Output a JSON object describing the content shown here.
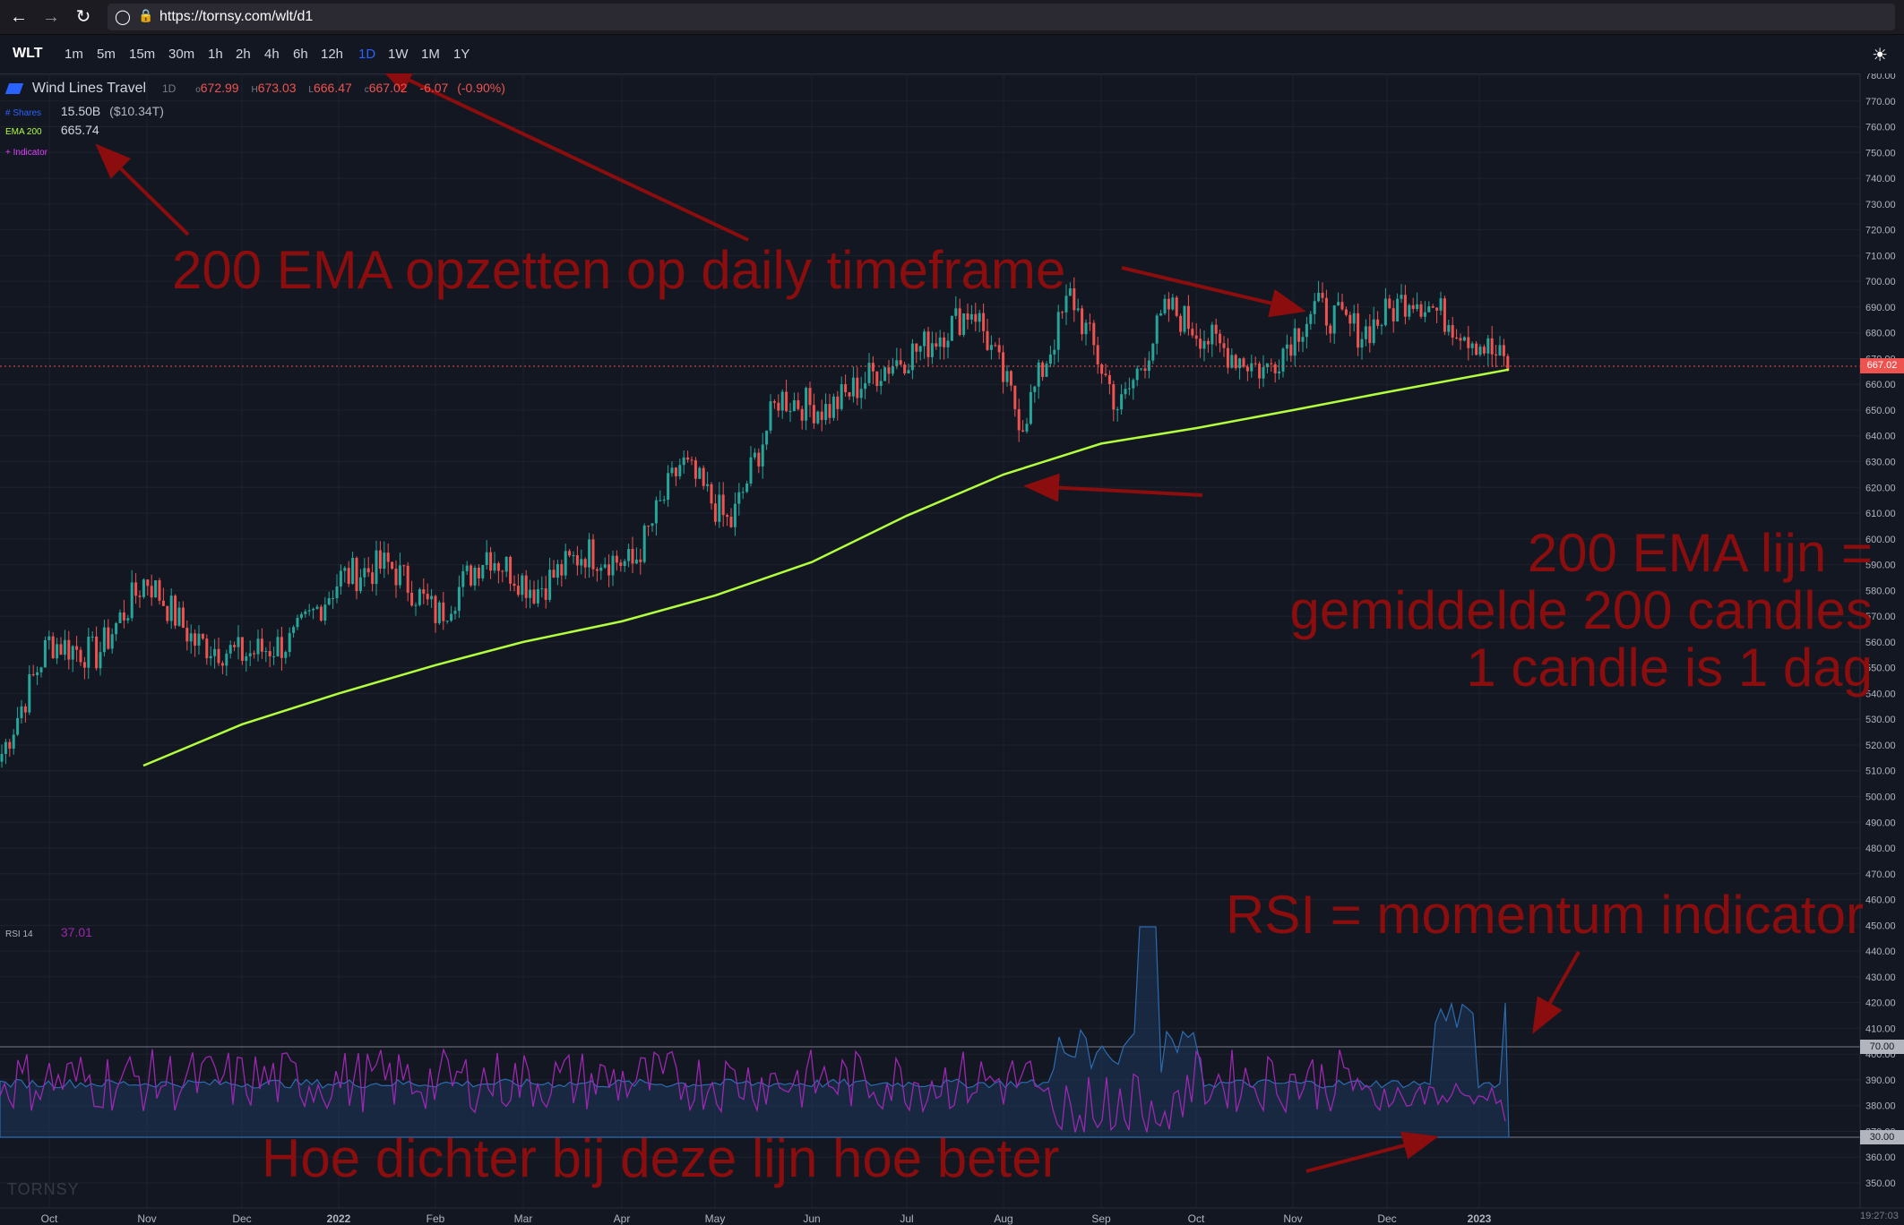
{
  "browser": {
    "url": "https://tornsy.com/wlt/d1",
    "back_icon": "arrow-left-icon",
    "forward_icon": "arrow-right-icon",
    "reload_icon": "reload-icon"
  },
  "toolbar": {
    "ticker": "WLT",
    "timeframes": [
      "1m",
      "5m",
      "15m",
      "30m",
      "1h",
      "2h",
      "4h",
      "6h",
      "12h",
      "1D",
      "1W",
      "1M",
      "1Y"
    ],
    "active_timeframe": "1D",
    "theme_icon": "sun-icon"
  },
  "legend": {
    "name": "Wind Lines Travel",
    "interval": "1D",
    "open_label": "o",
    "open": "672.99",
    "high_label": "H",
    "high": "673.03",
    "low_label": "L",
    "low": "666.47",
    "close_label": "c",
    "close": "667.02",
    "change": "-6.07",
    "change_pct": "(-0.90%)",
    "shares_label": "# Shares",
    "shares": "15.50B",
    "market_cap": "($10.34T)",
    "ema_label": "EMA 200",
    "ema_value": "665.74",
    "indicator_label": "+ Indicator",
    "rsi_label": "RSI 14",
    "rsi_value": "37.01"
  },
  "colors": {
    "background": "#131722",
    "up_candle": "#26a69a",
    "down_candle": "#ef5350",
    "ema": "#b2ff3e",
    "rsi": "#9c27b0",
    "volume": "#1e4a73",
    "annotation": "#8b0d0d",
    "price_tag": "#ef5350"
  },
  "annotations": {
    "ema_setup": "200 EMA opzetten op daily timeframe",
    "ema_line_1": "200 EMA lijn =",
    "ema_line_2": "gemiddelde 200 candles",
    "ema_line_3": "1 candle is 1 dag",
    "rsi": "RSI = momentum indicator",
    "closer": "Hoe dichter bij deze lijn hoe beter"
  },
  "watermark": "TORNSY",
  "clock": "19:27:03",
  "price_tags": {
    "last": "667.02",
    "rsi_upper": "70.00",
    "rsi_lower": "30.00"
  },
  "chart_data": {
    "type": "candlestick",
    "x_ticks": [
      "Oct",
      "Nov",
      "Dec",
      "2022",
      "Feb",
      "Mar",
      "Apr",
      "May",
      "Jun",
      "Jul",
      "Aug",
      "Sep",
      "Oct",
      "Nov",
      "Dec",
      "2023"
    ],
    "y_ticks": [
      350,
      360,
      370,
      380,
      390,
      400,
      410,
      420,
      430,
      440,
      450,
      460,
      470,
      480,
      490,
      500,
      510,
      520,
      530,
      540,
      550,
      560,
      570,
      580,
      590,
      600,
      610,
      620,
      630,
      640,
      650,
      660,
      670,
      680,
      690,
      700,
      710,
      720,
      730,
      740,
      750,
      760,
      770,
      780
    ],
    "ylim": [
      345,
      785
    ],
    "close_trend": [
      {
        "month": "Oct",
        "price": 515
      },
      {
        "month": "Oct",
        "price": 560
      },
      {
        "month": "Nov",
        "price": 555
      },
      {
        "month": "Nov",
        "price": 585
      },
      {
        "month": "Dec",
        "price": 560
      },
      {
        "month": "Dec",
        "price": 555
      },
      {
        "month": "2022",
        "price": 560
      },
      {
        "month": "2022",
        "price": 585
      },
      {
        "month": "Feb",
        "price": 590
      },
      {
        "month": "Feb",
        "price": 570
      },
      {
        "month": "Mar",
        "price": 595
      },
      {
        "month": "Mar",
        "price": 580
      },
      {
        "month": "Apr",
        "price": 595
      },
      {
        "month": "Apr",
        "price": 590
      },
      {
        "month": "May",
        "price": 630
      },
      {
        "month": "May",
        "price": 605
      },
      {
        "month": "Jun",
        "price": 655
      },
      {
        "month": "Jun",
        "price": 650
      },
      {
        "month": "Jul",
        "price": 665
      },
      {
        "month": "Jul",
        "price": 675
      },
      {
        "month": "Aug",
        "price": 690
      },
      {
        "month": "Aug",
        "price": 645
      },
      {
        "month": "Sep",
        "price": 695
      },
      {
        "month": "Sep",
        "price": 650
      },
      {
        "month": "Oct",
        "price": 690
      },
      {
        "month": "Oct",
        "price": 675
      },
      {
        "month": "Nov",
        "price": 665
      },
      {
        "month": "Nov",
        "price": 690
      },
      {
        "month": "Dec",
        "price": 680
      },
      {
        "month": "Dec",
        "price": 695
      },
      {
        "month": "2023",
        "price": 682
      },
      {
        "month": "2023",
        "price": 667
      }
    ],
    "ema200": [
      {
        "month": "Nov",
        "price": 512
      },
      {
        "month": "Dec",
        "price": 528
      },
      {
        "month": "2022",
        "price": 540
      },
      {
        "month": "Feb",
        "price": 551
      },
      {
        "month": "Mar",
        "price": 560
      },
      {
        "month": "Apr",
        "price": 568
      },
      {
        "month": "May",
        "price": 578
      },
      {
        "month": "Jun",
        "price": 591
      },
      {
        "month": "Jul",
        "price": 609
      },
      {
        "month": "Aug",
        "price": 625
      },
      {
        "month": "Sep",
        "price": 637
      },
      {
        "month": "Oct",
        "price": 643
      },
      {
        "month": "Nov",
        "price": 650
      },
      {
        "month": "Dec",
        "price": 657
      },
      {
        "month": "2023",
        "price": 665.74
      }
    ],
    "rsi_levels": {
      "upper": 70,
      "lower": 30,
      "last": 37.01
    }
  }
}
